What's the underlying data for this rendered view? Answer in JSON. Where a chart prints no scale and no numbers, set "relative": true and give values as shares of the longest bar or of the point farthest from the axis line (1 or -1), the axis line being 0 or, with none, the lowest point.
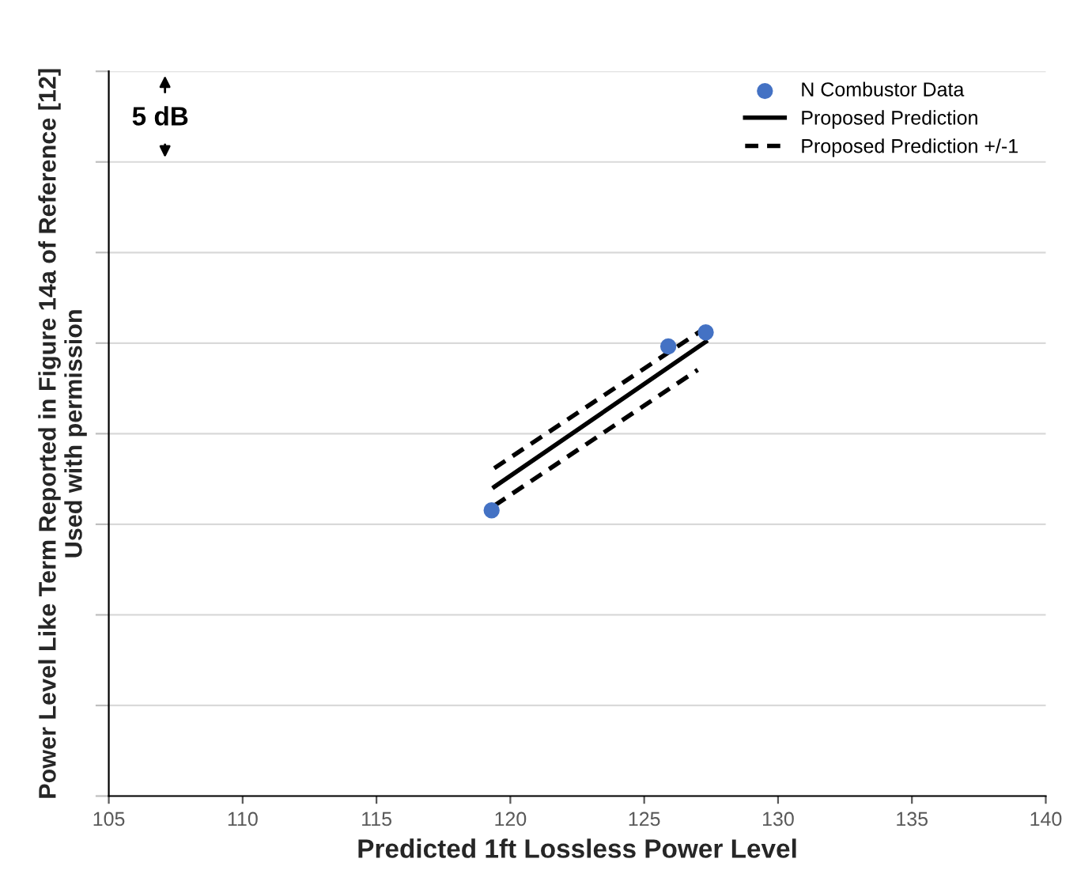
{
  "chart_data": {
    "type": "scatter",
    "relative": true,
    "xlabel": "Predicted 1ft Lossless Power Level",
    "ylabel": "Power Level Like Term Reported in Figure 14a of Reference [12]\nUsed with permission",
    "annotations": [
      "5 dB"
    ],
    "xlim": [
      105,
      140
    ],
    "xticks": [
      105,
      110,
      115,
      120,
      125,
      130,
      135,
      140
    ],
    "grid": "y",
    "legend": "top right",
    "series": [
      {
        "name": "N Combustor Data",
        "color": "#4472c4",
        "marker": "circle",
        "x": [
          119.3,
          125.9,
          127.3
        ],
        "values": [
          0.61,
          0.96,
          0.99
        ]
      },
      {
        "name": "Proposed Prediction",
        "type": "line",
        "color": "#000000",
        "line_style": "solid",
        "marker": "none",
        "x": [
          119.4,
          127.3
        ],
        "values": [
          0.66,
          0.97
        ]
      },
      {
        "name": "Proposed Prediction +/-1",
        "type": "line",
        "color": "#000000",
        "line_style": "dashed",
        "marker": "none",
        "x": [
          119.4,
          127.3
        ],
        "values": [
          0.7,
          1.0
        ]
      },
      {
        "type": "line",
        "color": "#000000",
        "line_style": "dashed",
        "marker": "none",
        "x": [
          119.4,
          127.0
        ],
        "values": [
          0.62,
          0.91
        ]
      }
    ]
  }
}
